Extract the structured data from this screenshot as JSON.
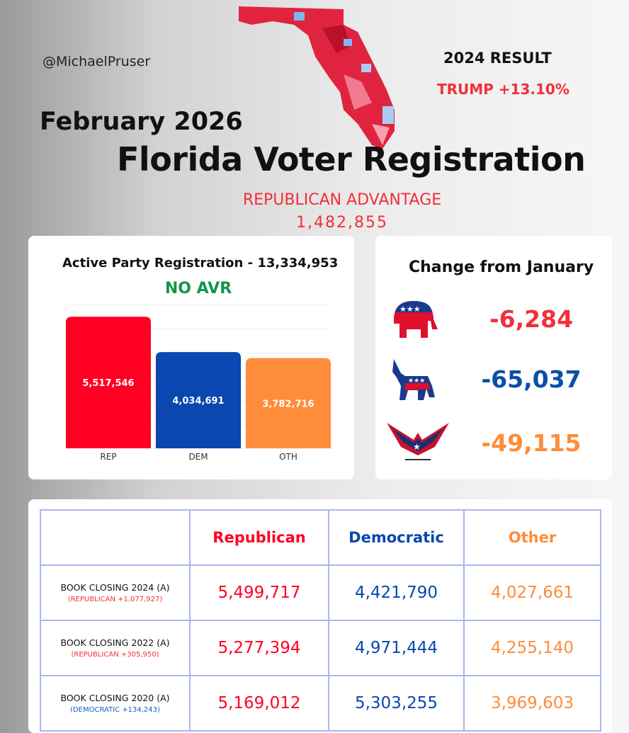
{
  "header": {
    "handle": "@MichaelPruser",
    "result_title": "2024 RESULT",
    "result_value": "TRUMP +13.10%",
    "month": "February 2026",
    "title": "Florida Voter Registration",
    "advantage_label": "REPUBLICAN ADVANTAGE",
    "advantage_value": "1,482,855"
  },
  "colors": {
    "rep": "#ff0022",
    "dem": "#0a47b0",
    "oth": "#ff8c3a",
    "green": "#12954a"
  },
  "chart_data": {
    "type": "bar",
    "title": "Active Party Registration - 13,334,953",
    "subtitle": "NO AVR",
    "categories": [
      "REP",
      "DEM",
      "OTH"
    ],
    "values": [
      5517546,
      4034691,
      3782716
    ],
    "labels": [
      "5,517,546",
      "4,034,691",
      "3,782,716"
    ],
    "ylim": [
      0,
      6000000
    ],
    "grid": true
  },
  "change": {
    "title": "Change from January",
    "items": [
      {
        "icon": "republican-elephant-icon",
        "value": "-6,284",
        "color": "#f0303a"
      },
      {
        "icon": "democratic-donkey-icon",
        "value": "-65,037",
        "color": "#0a4fa8"
      },
      {
        "icon": "eagle-icon",
        "value": "-49,115",
        "color": "#ff8c3a"
      }
    ]
  },
  "table": {
    "headers": [
      "Republican",
      "Democratic",
      "Other"
    ],
    "rows": [
      {
        "label": "BOOK CLOSING 2024 (A)",
        "note": "(REPUBLICAN +1,077,927)",
        "note_color": "#f0303a",
        "values": [
          "5,499,717",
          "4,421,790",
          "4,027,661"
        ]
      },
      {
        "label": "BOOK CLOSING 2022 (A)",
        "note": "(REPUBLICAN +305,950)",
        "note_color": "#f0303a",
        "values": [
          "5,277,394",
          "4,971,444",
          "4,255,140"
        ]
      },
      {
        "label": "BOOK CLOSING 2020 (A)",
        "note": "(DEMOCRATIC +134,243)",
        "note_color": "#1a5fc0",
        "values": [
          "5,169,012",
          "5,303,255",
          "3,969,603"
        ]
      }
    ]
  }
}
